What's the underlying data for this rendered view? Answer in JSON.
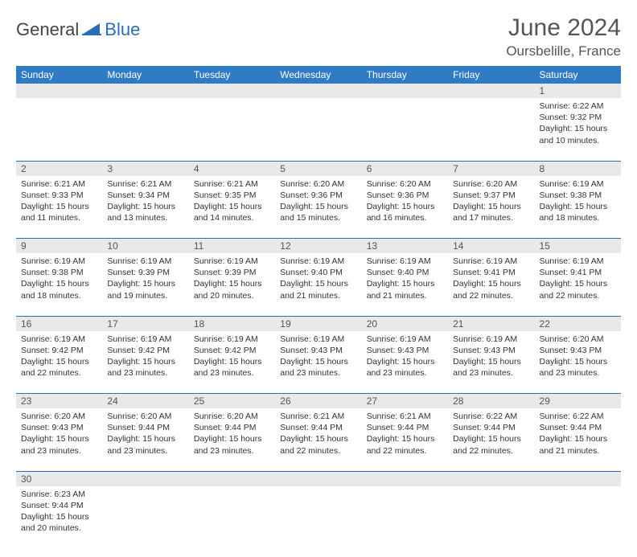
{
  "brand": {
    "part1": "General",
    "part2": "Blue"
  },
  "title": "June 2024",
  "location": "Oursbelille, France",
  "colors": {
    "header_bg": "#2f7cc4",
    "header_text": "#ffffff",
    "daynum_bg": "#e9e9e9",
    "rule": "#2a6db8",
    "brand_blue": "#2a6db8",
    "text": "#333333"
  },
  "weekdays": [
    "Sunday",
    "Monday",
    "Tuesday",
    "Wednesday",
    "Thursday",
    "Friday",
    "Saturday"
  ],
  "weeks": [
    {
      "nums": [
        "",
        "",
        "",
        "",
        "",
        "",
        "1"
      ],
      "cells": [
        null,
        null,
        null,
        null,
        null,
        null,
        {
          "sunrise": "Sunrise: 6:22 AM",
          "sunset": "Sunset: 9:32 PM",
          "d1": "Daylight: 15 hours",
          "d2": "and 10 minutes."
        }
      ]
    },
    {
      "nums": [
        "2",
        "3",
        "4",
        "5",
        "6",
        "7",
        "8"
      ],
      "cells": [
        {
          "sunrise": "Sunrise: 6:21 AM",
          "sunset": "Sunset: 9:33 PM",
          "d1": "Daylight: 15 hours",
          "d2": "and 11 minutes."
        },
        {
          "sunrise": "Sunrise: 6:21 AM",
          "sunset": "Sunset: 9:34 PM",
          "d1": "Daylight: 15 hours",
          "d2": "and 13 minutes."
        },
        {
          "sunrise": "Sunrise: 6:21 AM",
          "sunset": "Sunset: 9:35 PM",
          "d1": "Daylight: 15 hours",
          "d2": "and 14 minutes."
        },
        {
          "sunrise": "Sunrise: 6:20 AM",
          "sunset": "Sunset: 9:36 PM",
          "d1": "Daylight: 15 hours",
          "d2": "and 15 minutes."
        },
        {
          "sunrise": "Sunrise: 6:20 AM",
          "sunset": "Sunset: 9:36 PM",
          "d1": "Daylight: 15 hours",
          "d2": "and 16 minutes."
        },
        {
          "sunrise": "Sunrise: 6:20 AM",
          "sunset": "Sunset: 9:37 PM",
          "d1": "Daylight: 15 hours",
          "d2": "and 17 minutes."
        },
        {
          "sunrise": "Sunrise: 6:19 AM",
          "sunset": "Sunset: 9:38 PM",
          "d1": "Daylight: 15 hours",
          "d2": "and 18 minutes."
        }
      ]
    },
    {
      "nums": [
        "9",
        "10",
        "11",
        "12",
        "13",
        "14",
        "15"
      ],
      "cells": [
        {
          "sunrise": "Sunrise: 6:19 AM",
          "sunset": "Sunset: 9:38 PM",
          "d1": "Daylight: 15 hours",
          "d2": "and 18 minutes."
        },
        {
          "sunrise": "Sunrise: 6:19 AM",
          "sunset": "Sunset: 9:39 PM",
          "d1": "Daylight: 15 hours",
          "d2": "and 19 minutes."
        },
        {
          "sunrise": "Sunrise: 6:19 AM",
          "sunset": "Sunset: 9:39 PM",
          "d1": "Daylight: 15 hours",
          "d2": "and 20 minutes."
        },
        {
          "sunrise": "Sunrise: 6:19 AM",
          "sunset": "Sunset: 9:40 PM",
          "d1": "Daylight: 15 hours",
          "d2": "and 21 minutes."
        },
        {
          "sunrise": "Sunrise: 6:19 AM",
          "sunset": "Sunset: 9:40 PM",
          "d1": "Daylight: 15 hours",
          "d2": "and 21 minutes."
        },
        {
          "sunrise": "Sunrise: 6:19 AM",
          "sunset": "Sunset: 9:41 PM",
          "d1": "Daylight: 15 hours",
          "d2": "and 22 minutes."
        },
        {
          "sunrise": "Sunrise: 6:19 AM",
          "sunset": "Sunset: 9:41 PM",
          "d1": "Daylight: 15 hours",
          "d2": "and 22 minutes."
        }
      ]
    },
    {
      "nums": [
        "16",
        "17",
        "18",
        "19",
        "20",
        "21",
        "22"
      ],
      "cells": [
        {
          "sunrise": "Sunrise: 6:19 AM",
          "sunset": "Sunset: 9:42 PM",
          "d1": "Daylight: 15 hours",
          "d2": "and 22 minutes."
        },
        {
          "sunrise": "Sunrise: 6:19 AM",
          "sunset": "Sunset: 9:42 PM",
          "d1": "Daylight: 15 hours",
          "d2": "and 23 minutes."
        },
        {
          "sunrise": "Sunrise: 6:19 AM",
          "sunset": "Sunset: 9:42 PM",
          "d1": "Daylight: 15 hours",
          "d2": "and 23 minutes."
        },
        {
          "sunrise": "Sunrise: 6:19 AM",
          "sunset": "Sunset: 9:43 PM",
          "d1": "Daylight: 15 hours",
          "d2": "and 23 minutes."
        },
        {
          "sunrise": "Sunrise: 6:19 AM",
          "sunset": "Sunset: 9:43 PM",
          "d1": "Daylight: 15 hours",
          "d2": "and 23 minutes."
        },
        {
          "sunrise": "Sunrise: 6:19 AM",
          "sunset": "Sunset: 9:43 PM",
          "d1": "Daylight: 15 hours",
          "d2": "and 23 minutes."
        },
        {
          "sunrise": "Sunrise: 6:20 AM",
          "sunset": "Sunset: 9:43 PM",
          "d1": "Daylight: 15 hours",
          "d2": "and 23 minutes."
        }
      ]
    },
    {
      "nums": [
        "23",
        "24",
        "25",
        "26",
        "27",
        "28",
        "29"
      ],
      "cells": [
        {
          "sunrise": "Sunrise: 6:20 AM",
          "sunset": "Sunset: 9:43 PM",
          "d1": "Daylight: 15 hours",
          "d2": "and 23 minutes."
        },
        {
          "sunrise": "Sunrise: 6:20 AM",
          "sunset": "Sunset: 9:44 PM",
          "d1": "Daylight: 15 hours",
          "d2": "and 23 minutes."
        },
        {
          "sunrise": "Sunrise: 6:20 AM",
          "sunset": "Sunset: 9:44 PM",
          "d1": "Daylight: 15 hours",
          "d2": "and 23 minutes."
        },
        {
          "sunrise": "Sunrise: 6:21 AM",
          "sunset": "Sunset: 9:44 PM",
          "d1": "Daylight: 15 hours",
          "d2": "and 22 minutes."
        },
        {
          "sunrise": "Sunrise: 6:21 AM",
          "sunset": "Sunset: 9:44 PM",
          "d1": "Daylight: 15 hours",
          "d2": "and 22 minutes."
        },
        {
          "sunrise": "Sunrise: 6:22 AM",
          "sunset": "Sunset: 9:44 PM",
          "d1": "Daylight: 15 hours",
          "d2": "and 22 minutes."
        },
        {
          "sunrise": "Sunrise: 6:22 AM",
          "sunset": "Sunset: 9:44 PM",
          "d1": "Daylight: 15 hours",
          "d2": "and 21 minutes."
        }
      ]
    },
    {
      "nums": [
        "30",
        "",
        "",
        "",
        "",
        "",
        ""
      ],
      "cells": [
        {
          "sunrise": "Sunrise: 6:23 AM",
          "sunset": "Sunset: 9:44 PM",
          "d1": "Daylight: 15 hours",
          "d2": "and 20 minutes."
        },
        null,
        null,
        null,
        null,
        null,
        null
      ]
    }
  ]
}
